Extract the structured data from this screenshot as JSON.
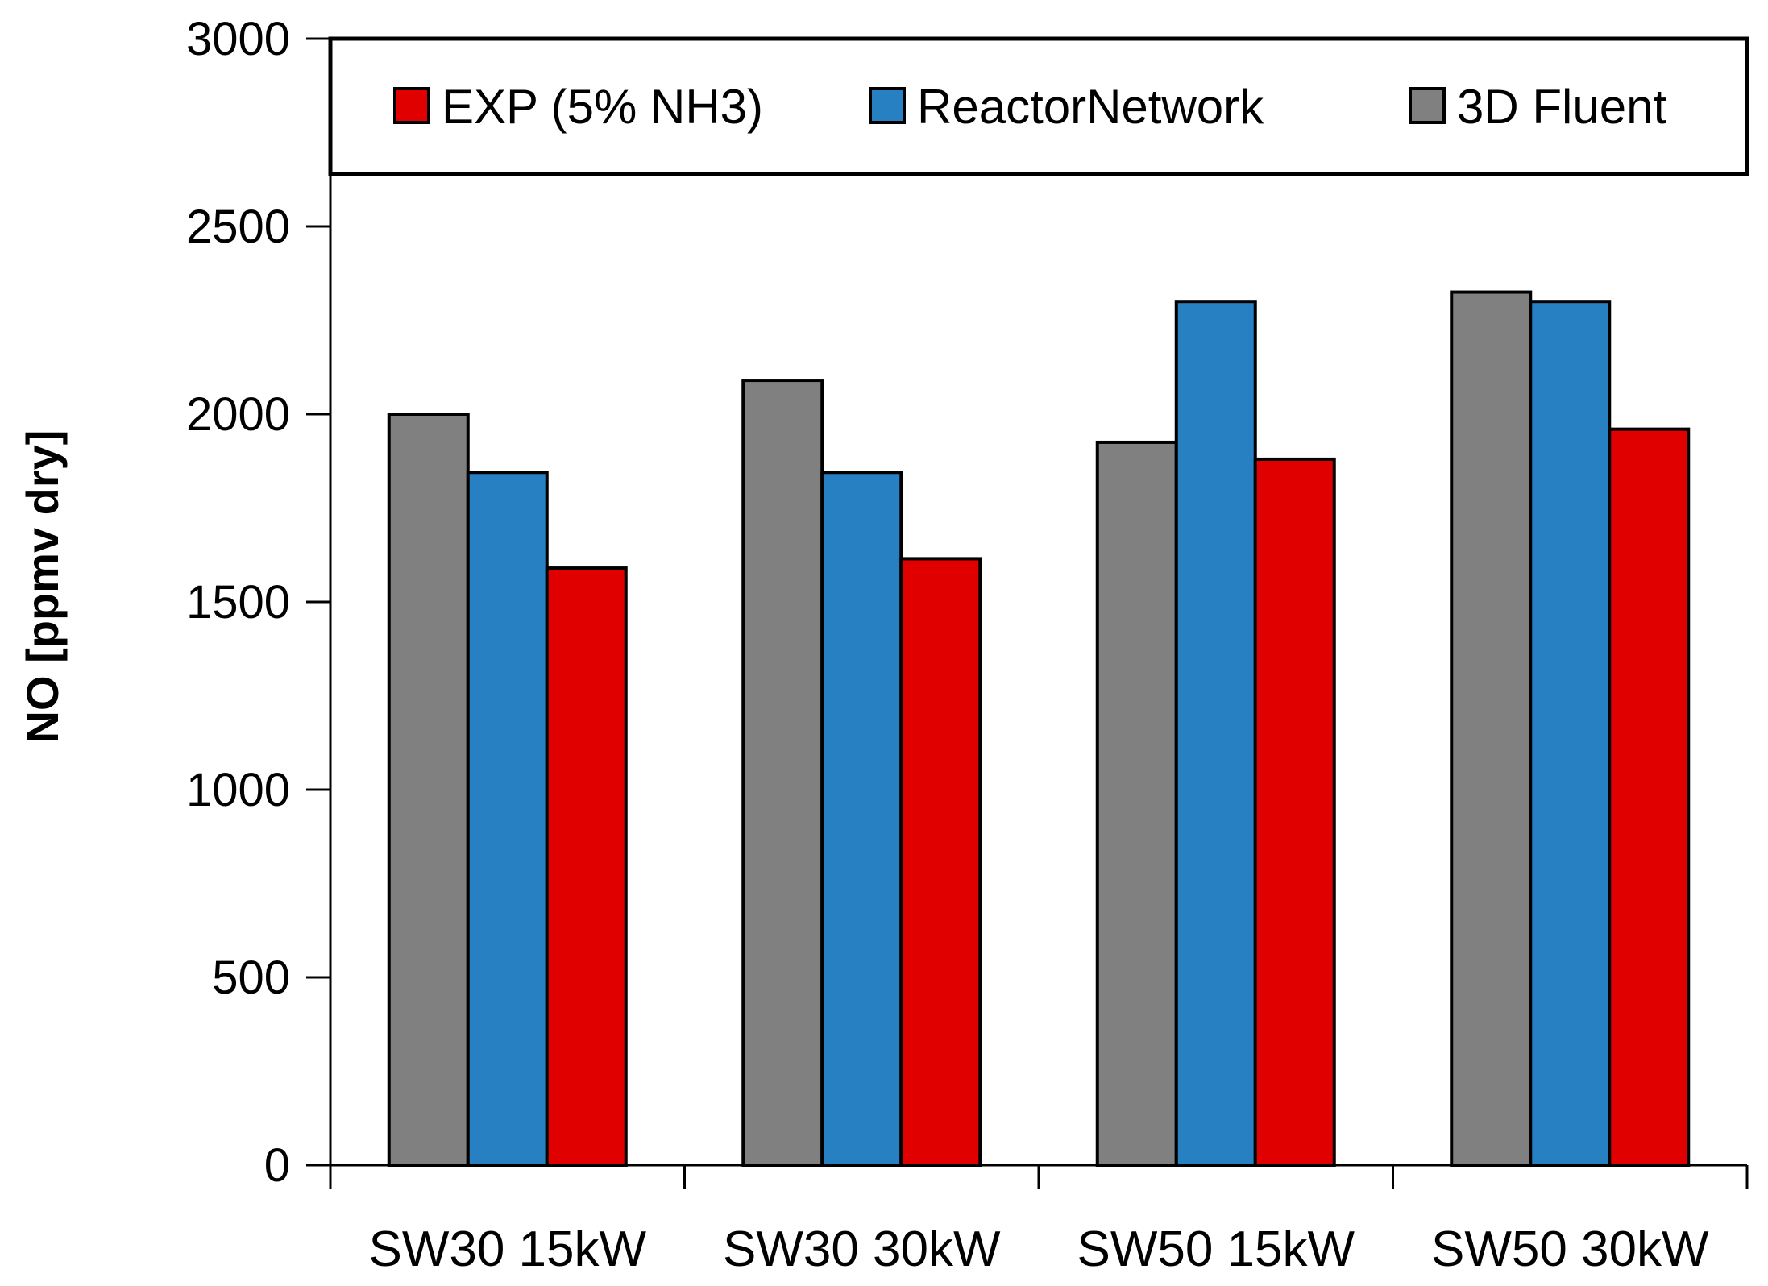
{
  "chart_data": {
    "type": "bar",
    "title": "",
    "xlabel": "",
    "ylabel": "NO [ppmv dry]",
    "ylim": [
      0,
      3000
    ],
    "yticks": [
      "0",
      "500",
      "1000",
      "1500",
      "2000",
      "2500",
      "3000"
    ],
    "grid": false,
    "legend_position": "top",
    "categories": [
      "SW30 15kW",
      "SW30 30kW",
      "SW50 15kW",
      "SW50 30kW"
    ],
    "series": [
      {
        "name": "3D Fluent",
        "color": "#808080",
        "values": [
          2000,
          2090,
          1925,
          2325
        ]
      },
      {
        "name": "ReactorNetwork",
        "color": "#2680c2",
        "values": [
          1845,
          1845,
          2300,
          2300
        ]
      },
      {
        "name": "EXP (5% NH3)",
        "color": "#e00000",
        "values": [
          1590,
          1615,
          1880,
          1960
        ]
      }
    ],
    "legend_order": [
      "EXP (5% NH3)",
      "ReactorNetwork",
      "3D Fluent"
    ]
  }
}
